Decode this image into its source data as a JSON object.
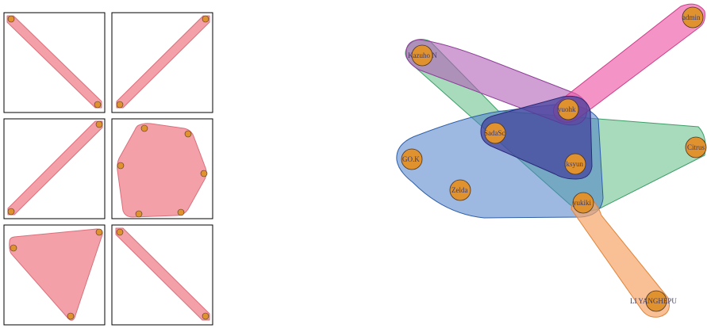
{
  "colors": {
    "panel_fill": "#f28b96",
    "panel_stroke": "#d9707c",
    "node_fill": "#e0922f",
    "node_stroke": "#4a3220",
    "label": "#3a3a6a",
    "purple": "#b15fb8",
    "pink": "#ee5aa8",
    "green": "#5fbd85",
    "blue": "#4c7fc8",
    "navy": "#3f3f9a",
    "orange": "#f6a56a"
  },
  "small_panels": [
    {
      "shape": "diagonal-down",
      "nodes": 2
    },
    {
      "shape": "diagonal-up",
      "nodes": 2
    },
    {
      "shape": "diagonal-up",
      "nodes": 2
    },
    {
      "shape": "hexagon",
      "nodes": 6
    },
    {
      "shape": "triangle",
      "nodes": 3
    },
    {
      "shape": "diagonal-down",
      "nodes": 2
    }
  ],
  "network": {
    "nodes": [
      {
        "id": "kazuho",
        "label": "Kazuho N"
      },
      {
        "id": "admin",
        "label": "admin"
      },
      {
        "id": "yuohk",
        "label": "yuohk"
      },
      {
        "id": "sadasc",
        "label": "SadaSc"
      },
      {
        "id": "gok",
        "label": "GO.K"
      },
      {
        "id": "iksyun",
        "label": "iksyun"
      },
      {
        "id": "citrus",
        "label": "Citrus"
      },
      {
        "id": "zelda",
        "label": "Zelda"
      },
      {
        "id": "yukiki",
        "label": "yukiki"
      },
      {
        "id": "li",
        "label": "LI YANGHEPU"
      }
    ]
  }
}
